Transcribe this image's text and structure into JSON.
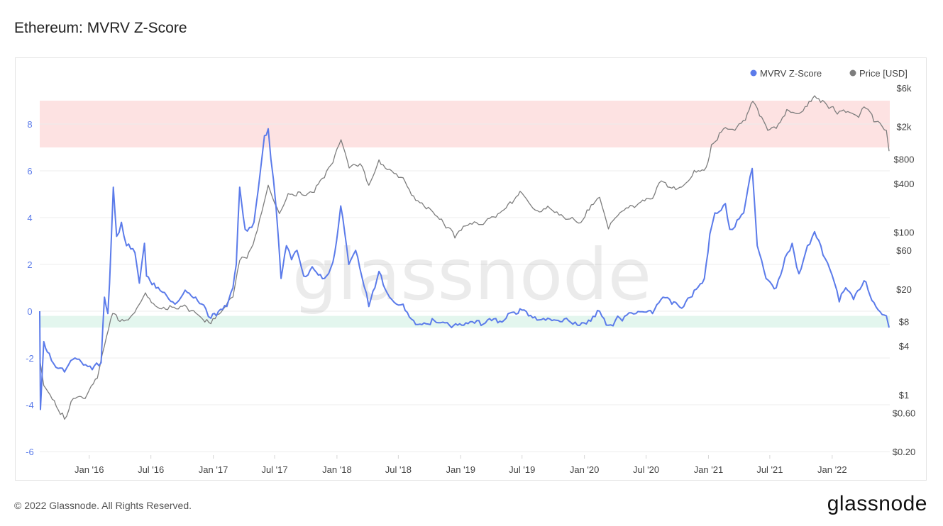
{
  "title": "Ethereum: MVRV Z-Score",
  "footer": {
    "copyright": "© 2022 Glassnode. All Rights Reserved.",
    "logo": "glassnode"
  },
  "watermark": "glassnode",
  "colors": {
    "zscore": "#5b7bea",
    "price": "#7d7d7d",
    "top_band": "#fde2e2",
    "bottom_band": "#e3f6ee",
    "grid": "#ececec",
    "left_tick": "#5b7bea"
  },
  "chart_data": {
    "type": "line",
    "title": "Ethereum: MVRV Z-Score",
    "legend": {
      "placement": "top-right",
      "entries": [
        "MVRV Z-Score",
        "Price [USD]"
      ]
    },
    "x_range": [
      "2015-08-08",
      "2022-06-20"
    ],
    "x_ticks": [
      {
        "label": "Jan '16",
        "date": "2016-01-01"
      },
      {
        "label": "Jul '16",
        "date": "2016-07-01"
      },
      {
        "label": "Jan '17",
        "date": "2017-01-01"
      },
      {
        "label": "Jul '17",
        "date": "2017-07-01"
      },
      {
        "label": "Jan '18",
        "date": "2018-01-01"
      },
      {
        "label": "Jul '18",
        "date": "2018-07-01"
      },
      {
        "label": "Jan '19",
        "date": "2019-01-01"
      },
      {
        "label": "Jul '19",
        "date": "2019-07-01"
      },
      {
        "label": "Jan '20",
        "date": "2020-01-01"
      },
      {
        "label": "Jul '20",
        "date": "2020-07-01"
      },
      {
        "label": "Jan '21",
        "date": "2021-01-01"
      },
      {
        "label": "Jul '21",
        "date": "2021-07-01"
      },
      {
        "label": "Jan '22",
        "date": "2022-01-01"
      }
    ],
    "y_left": {
      "range": [
        -6,
        10
      ],
      "ticks": [
        {
          "label": "8",
          "value": 8
        },
        {
          "label": "6",
          "value": 6
        },
        {
          "label": "4",
          "value": 4
        },
        {
          "label": "2",
          "value": 2
        },
        {
          "label": "0",
          "value": 0
        },
        {
          "label": "-2",
          "value": -2
        },
        {
          "label": "-4",
          "value": -4
        },
        {
          "label": "-6",
          "value": -6
        }
      ]
    },
    "y_right": {
      "scale": "log",
      "range": [
        0.2,
        6000
      ],
      "ticks": [
        {
          "label": "$6k",
          "value": 6000
        },
        {
          "label": "$2k",
          "value": 2000
        },
        {
          "label": "$800",
          "value": 800
        },
        {
          "label": "$400",
          "value": 400
        },
        {
          "label": "$100",
          "value": 100
        },
        {
          "label": "$60",
          "value": 60
        },
        {
          "label": "$20",
          "value": 20
        },
        {
          "label": "$8",
          "value": 8
        },
        {
          "label": "$4",
          "value": 4
        },
        {
          "label": "$1",
          "value": 1
        },
        {
          "label": "$0.60",
          "value": 0.6
        },
        {
          "label": "$0.20",
          "value": 0.2
        }
      ]
    },
    "bands": [
      {
        "name": "top",
        "y_from": 7.0,
        "y_to": 9.0
      },
      {
        "name": "bottom",
        "y_from": -0.7,
        "y_to": -0.2
      }
    ],
    "series": [
      {
        "name": "MVRV Z-Score",
        "axis": "left",
        "points": [
          [
            "2015-08-08",
            0.0
          ],
          [
            "2015-08-10",
            -4.2
          ],
          [
            "2015-08-20",
            -1.3
          ],
          [
            "2015-09-05",
            -1.8
          ],
          [
            "2015-09-25",
            -2.4
          ],
          [
            "2015-10-20",
            -2.6
          ],
          [
            "2015-11-20",
            -2.0
          ],
          [
            "2015-12-15",
            -2.3
          ],
          [
            "2016-01-10",
            -2.5
          ],
          [
            "2016-02-05",
            -2.2
          ],
          [
            "2016-02-15",
            0.6
          ],
          [
            "2016-02-25",
            -0.1
          ],
          [
            "2016-03-01",
            1.2
          ],
          [
            "2016-03-12",
            5.3
          ],
          [
            "2016-03-22",
            3.2
          ],
          [
            "2016-04-05",
            3.8
          ],
          [
            "2016-04-20",
            2.8
          ],
          [
            "2016-05-15",
            2.5
          ],
          [
            "2016-05-28",
            1.2
          ],
          [
            "2016-06-12",
            2.9
          ],
          [
            "2016-06-18",
            1.5
          ],
          [
            "2016-07-10",
            1.2
          ],
          [
            "2016-08-10",
            0.8
          ],
          [
            "2016-09-10",
            0.3
          ],
          [
            "2016-10-10",
            0.9
          ],
          [
            "2016-11-10",
            0.6
          ],
          [
            "2016-12-10",
            0.1
          ],
          [
            "2016-12-25",
            -0.3
          ],
          [
            "2017-01-10",
            -0.2
          ],
          [
            "2017-02-10",
            0.2
          ],
          [
            "2017-02-28",
            1.0
          ],
          [
            "2017-03-10",
            2.0
          ],
          [
            "2017-03-20",
            5.3
          ],
          [
            "2017-04-05",
            3.5
          ],
          [
            "2017-05-01",
            3.8
          ],
          [
            "2017-05-20",
            6.0
          ],
          [
            "2017-06-01",
            7.5
          ],
          [
            "2017-06-12",
            7.8
          ],
          [
            "2017-06-20",
            6.5
          ],
          [
            "2017-07-05",
            4.5
          ],
          [
            "2017-07-20",
            1.4
          ],
          [
            "2017-08-05",
            2.8
          ],
          [
            "2017-08-20",
            2.2
          ],
          [
            "2017-09-05",
            2.6
          ],
          [
            "2017-09-25",
            1.5
          ],
          [
            "2017-10-20",
            1.9
          ],
          [
            "2017-11-25",
            1.4
          ],
          [
            "2017-12-20",
            2.1
          ],
          [
            "2018-01-05",
            3.6
          ],
          [
            "2018-01-12",
            4.5
          ],
          [
            "2018-02-05",
            2.0
          ],
          [
            "2018-02-25",
            2.6
          ],
          [
            "2018-03-15",
            1.5
          ],
          [
            "2018-04-05",
            0.2
          ],
          [
            "2018-05-05",
            1.7
          ],
          [
            "2018-06-05",
            0.6
          ],
          [
            "2018-07-15",
            0.3
          ],
          [
            "2018-08-15",
            -0.4
          ],
          [
            "2018-09-15",
            -0.5
          ],
          [
            "2018-10-15",
            -0.4
          ],
          [
            "2018-12-05",
            -0.7
          ],
          [
            "2019-01-10",
            -0.6
          ],
          [
            "2019-03-15",
            -0.5
          ],
          [
            "2019-05-15",
            -0.3
          ],
          [
            "2019-06-25",
            0.1
          ],
          [
            "2019-07-20",
            -0.2
          ],
          [
            "2019-09-15",
            -0.3
          ],
          [
            "2019-11-15",
            -0.4
          ],
          [
            "2019-12-31",
            -0.5
          ],
          [
            "2020-02-15",
            0.0
          ],
          [
            "2020-03-12",
            -0.6
          ],
          [
            "2020-04-15",
            -0.3
          ],
          [
            "2020-06-01",
            -0.1
          ],
          [
            "2020-07-20",
            -0.1
          ],
          [
            "2020-08-20",
            0.6
          ],
          [
            "2020-09-15",
            0.3
          ],
          [
            "2020-10-20",
            0.2
          ],
          [
            "2020-11-20",
            0.9
          ],
          [
            "2020-12-20",
            1.4
          ],
          [
            "2021-01-05",
            3.3
          ],
          [
            "2021-01-20",
            4.2
          ],
          [
            "2021-02-20",
            4.6
          ],
          [
            "2021-03-05",
            3.5
          ],
          [
            "2021-03-20",
            3.6
          ],
          [
            "2021-04-15",
            4.2
          ],
          [
            "2021-05-10",
            6.1
          ],
          [
            "2021-05-25",
            2.8
          ],
          [
            "2021-06-20",
            1.4
          ],
          [
            "2021-07-20",
            1.0
          ],
          [
            "2021-08-15",
            2.3
          ],
          [
            "2021-09-05",
            2.9
          ],
          [
            "2021-09-25",
            1.6
          ],
          [
            "2021-10-20",
            2.8
          ],
          [
            "2021-11-10",
            3.4
          ],
          [
            "2021-12-05",
            2.4
          ],
          [
            "2021-12-25",
            1.8
          ],
          [
            "2022-01-22",
            0.4
          ],
          [
            "2022-02-10",
            1.0
          ],
          [
            "2022-03-05",
            0.5
          ],
          [
            "2022-04-05",
            1.3
          ],
          [
            "2022-05-10",
            0.2
          ],
          [
            "2022-06-10",
            -0.2
          ],
          [
            "2022-06-18",
            -0.7
          ]
        ]
      },
      {
        "name": "Price [USD]",
        "axis": "right",
        "points": [
          [
            "2015-08-08",
            2.8
          ],
          [
            "2015-08-20",
            1.3
          ],
          [
            "2015-09-20",
            0.85
          ],
          [
            "2015-10-20",
            0.5
          ],
          [
            "2015-11-15",
            0.9
          ],
          [
            "2015-12-20",
            0.9
          ],
          [
            "2016-01-25",
            1.6
          ],
          [
            "2016-02-15",
            4.0
          ],
          [
            "2016-03-10",
            10
          ],
          [
            "2016-04-01",
            8
          ],
          [
            "2016-05-01",
            9
          ],
          [
            "2016-06-15",
            18
          ],
          [
            "2016-07-20",
            12
          ],
          [
            "2016-09-01",
            12
          ],
          [
            "2016-10-15",
            12
          ],
          [
            "2016-12-01",
            8.5
          ],
          [
            "2016-12-25",
            7.5
          ],
          [
            "2017-01-25",
            10.5
          ],
          [
            "2017-02-28",
            16
          ],
          [
            "2017-03-20",
            45
          ],
          [
            "2017-04-10",
            48
          ],
          [
            "2017-05-05",
            90
          ],
          [
            "2017-06-12",
            380
          ],
          [
            "2017-07-15",
            170
          ],
          [
            "2017-08-10",
            300
          ],
          [
            "2017-09-20",
            290
          ],
          [
            "2017-10-20",
            310
          ],
          [
            "2017-11-25",
            470
          ],
          [
            "2017-12-20",
            720
          ],
          [
            "2018-01-13",
            1380
          ],
          [
            "2018-02-06",
            620
          ],
          [
            "2018-03-10",
            700
          ],
          [
            "2018-04-05",
            380
          ],
          [
            "2018-05-05",
            780
          ],
          [
            "2018-06-05",
            600
          ],
          [
            "2018-07-15",
            470
          ],
          [
            "2018-08-15",
            280
          ],
          [
            "2018-09-15",
            210
          ],
          [
            "2018-11-25",
            115
          ],
          [
            "2018-12-15",
            85
          ],
          [
            "2019-01-15",
            120
          ],
          [
            "2019-03-15",
            135
          ],
          [
            "2019-05-15",
            200
          ],
          [
            "2019-06-25",
            320
          ],
          [
            "2019-08-15",
            185
          ],
          [
            "2019-09-15",
            210
          ],
          [
            "2019-10-25",
            165
          ],
          [
            "2019-12-15",
            130
          ],
          [
            "2020-02-15",
            270
          ],
          [
            "2020-03-12",
            110
          ],
          [
            "2020-04-15",
            175
          ],
          [
            "2020-06-15",
            235
          ],
          [
            "2020-07-20",
            260
          ],
          [
            "2020-08-15",
            430
          ],
          [
            "2020-09-15",
            350
          ],
          [
            "2020-10-20",
            380
          ],
          [
            "2020-11-20",
            580
          ],
          [
            "2020-12-25",
            630
          ],
          [
            "2021-01-10",
            1200
          ],
          [
            "2021-02-20",
            1950
          ],
          [
            "2021-03-20",
            1800
          ],
          [
            "2021-04-20",
            2400
          ],
          [
            "2021-05-12",
            4100
          ],
          [
            "2021-06-01",
            2700
          ],
          [
            "2021-06-25",
            1800
          ],
          [
            "2021-07-20",
            1900
          ],
          [
            "2021-08-20",
            3250
          ],
          [
            "2021-09-25",
            2900
          ],
          [
            "2021-10-25",
            4100
          ],
          [
            "2021-11-10",
            4800
          ],
          [
            "2021-12-10",
            4000
          ],
          [
            "2022-01-10",
            3100
          ],
          [
            "2022-02-10",
            3000
          ],
          [
            "2022-03-20",
            2600
          ],
          [
            "2022-04-05",
            3500
          ],
          [
            "2022-05-10",
            2300
          ],
          [
            "2022-06-10",
            1800
          ],
          [
            "2022-06-18",
            1000
          ]
        ]
      }
    ]
  }
}
